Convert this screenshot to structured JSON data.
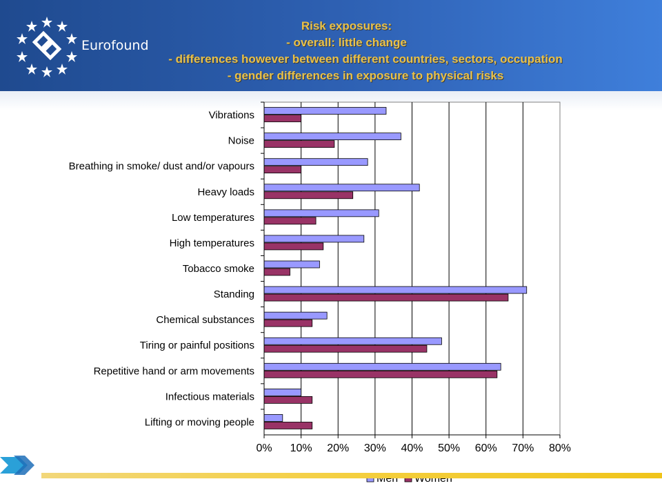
{
  "header": {
    "logo_text": "Eurofound",
    "title_lines": [
      "Risk exposures:",
      "- overall: little change",
      "- differences however between different countries, sectors, occupation",
      "- gender differences in exposure to physical risks"
    ]
  },
  "colors": {
    "header_blue": "#2f62b5",
    "title_gold": "#e8c14a",
    "men_bar": "#9999ff",
    "women_bar": "#993366",
    "accent_arrow": "#2aa0d8"
  },
  "chart_data": {
    "type": "bar",
    "orientation": "horizontal",
    "categories": [
      "Vibrations",
      "Noise",
      "Breathing in smoke/ dust and/or vapours",
      "Heavy loads",
      "Low temperatures",
      "High temperatures",
      "Tobacco smoke",
      "Standing",
      "Chemical substances",
      "Tiring or painful positions",
      "Repetitive hand or arm movements",
      "Infectious materials",
      "Lifting or moving people"
    ],
    "series": [
      {
        "name": "Men",
        "color": "#9999ff",
        "values": [
          33,
          37,
          28,
          42,
          31,
          27,
          15,
          71,
          17,
          48,
          64,
          10,
          5
        ]
      },
      {
        "name": "Women",
        "color": "#993366",
        "values": [
          10,
          19,
          10,
          24,
          14,
          16,
          7,
          66,
          13,
          44,
          63,
          13,
          13
        ]
      }
    ],
    "xlim": [
      0,
      80
    ],
    "xticks": [
      "0%",
      "10%",
      "20%",
      "30%",
      "40%",
      "50%",
      "60%",
      "70%",
      "80%"
    ],
    "grid": true,
    "legend": "bottom"
  }
}
